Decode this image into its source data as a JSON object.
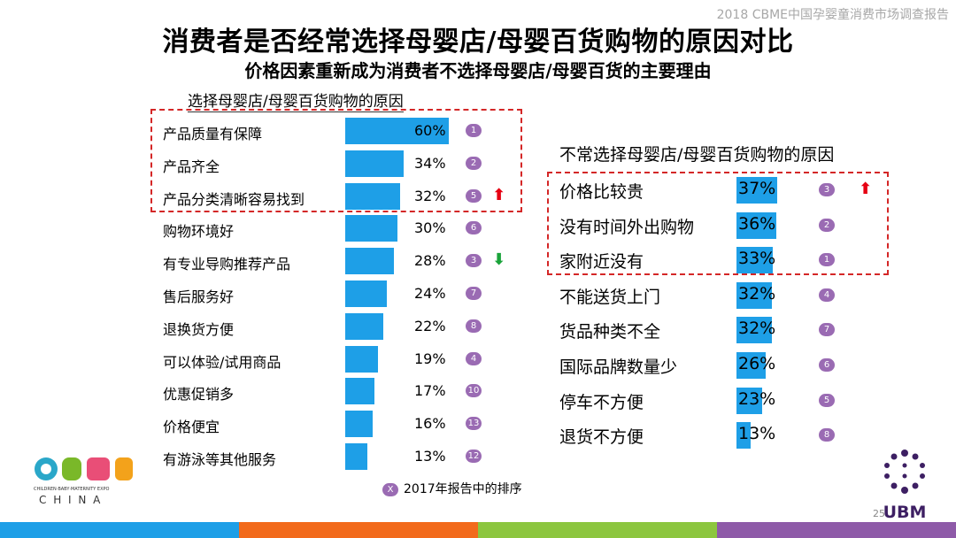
{
  "header": {
    "top_right": "2018 CBME中国孕婴童消费市场调查报告",
    "title": "消费者是否经常选择母婴店/母婴百货购物的原因对比",
    "subtitle": "价格因素重新成为消费者不选择母婴店/母婴百货的主要理由"
  },
  "left_section_title": "选择母婴店/母婴百货购物的原因",
  "right_section_title": "不常选择母婴店/母婴百货购物的原因",
  "legend": {
    "badge": "X",
    "text": "2017年报告中的排序"
  },
  "branding": {
    "cbme": "CBME",
    "cbme_sub": "CHILDREN·BABY·MATERNITY EXPO",
    "cbme_china": "C H I N A",
    "ubm": "UBM",
    "page": "25"
  },
  "colors": {
    "bar": "#1e9fe7",
    "badge": "#9a6bb3",
    "dash_box": "#d42727",
    "up_arrow": "#e60012",
    "down_arrow": "#1aa33a"
  },
  "chart_data": [
    {
      "type": "bar",
      "title": "选择母婴店/母婴百货购物的原因",
      "unit": "%",
      "categories": [
        "产品质量有保障",
        "产品齐全",
        "产品分类清晰容易找到",
        "购物环境好",
        "有专业导购推荐产品",
        "售后服务好",
        "退换货方便",
        "可以体验/试用商品",
        "优惠促销多",
        "价格便宜",
        "有游泳等其他服务"
      ],
      "values": [
        60,
        34,
        32,
        30,
        28,
        24,
        22,
        19,
        17,
        16,
        13
      ],
      "value_labels": [
        "60%",
        "34%",
        "32%",
        "30%",
        "28%",
        "24%",
        "22%",
        "19%",
        "17%",
        "16%",
        "13%"
      ],
      "rank_2017": [
        "1",
        "2",
        "5",
        "6",
        "3",
        "7",
        "8",
        "4",
        "10",
        "13",
        "12"
      ],
      "trend": [
        "",
        "",
        "up",
        "",
        "down",
        "",
        "",
        "",
        "",
        "",
        ""
      ]
    },
    {
      "type": "bar",
      "title": "不常选择母婴店/母婴百货购物的原因",
      "unit": "%",
      "categories": [
        "价格比较贵",
        "没有时间外出购物",
        "家附近没有",
        "不能送货上门",
        "货品种类不全",
        "国际品牌数量少",
        "停车不方便",
        "退货不方便"
      ],
      "values": [
        37,
        36,
        33,
        32,
        32,
        26,
        23,
        13
      ],
      "value_labels": [
        "37%",
        "36%",
        "33%",
        "32%",
        "32%",
        "26%",
        "23%",
        "13%"
      ],
      "rank_2017": [
        "3",
        "2",
        "1",
        "4",
        "7",
        "6",
        "5",
        "8"
      ],
      "trend": [
        "up",
        "",
        "",
        "",
        "",
        "",
        "",
        ""
      ]
    }
  ]
}
